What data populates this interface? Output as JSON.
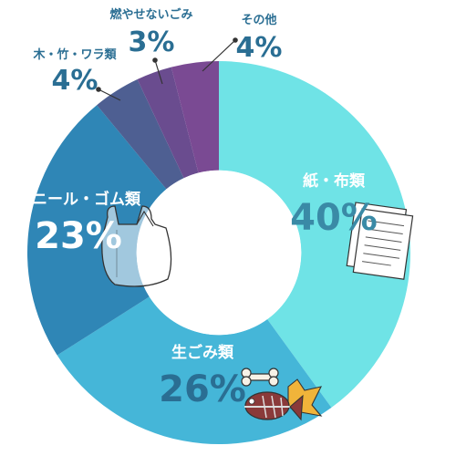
{
  "chart_data": {
    "type": "pie",
    "categories": [
      "紙・布類",
      "生ごみ類",
      "ビニール・ゴム類",
      "木・竹・ワラ類",
      "燃やせないごみ",
      "その他"
    ],
    "values": [
      40,
      26,
      23,
      4,
      3,
      4
    ],
    "value_labels": [
      "40%",
      "26%",
      "23%",
      "4%",
      "3%",
      "4%"
    ],
    "colors": [
      "#6fe3e6",
      "#45b6d8",
      "#2f86b6",
      "#4e5f92",
      "#6a4c8f",
      "#7a4a93"
    ],
    "hole_fraction": 0.43,
    "start": "top",
    "direction": "clockwise"
  }
}
